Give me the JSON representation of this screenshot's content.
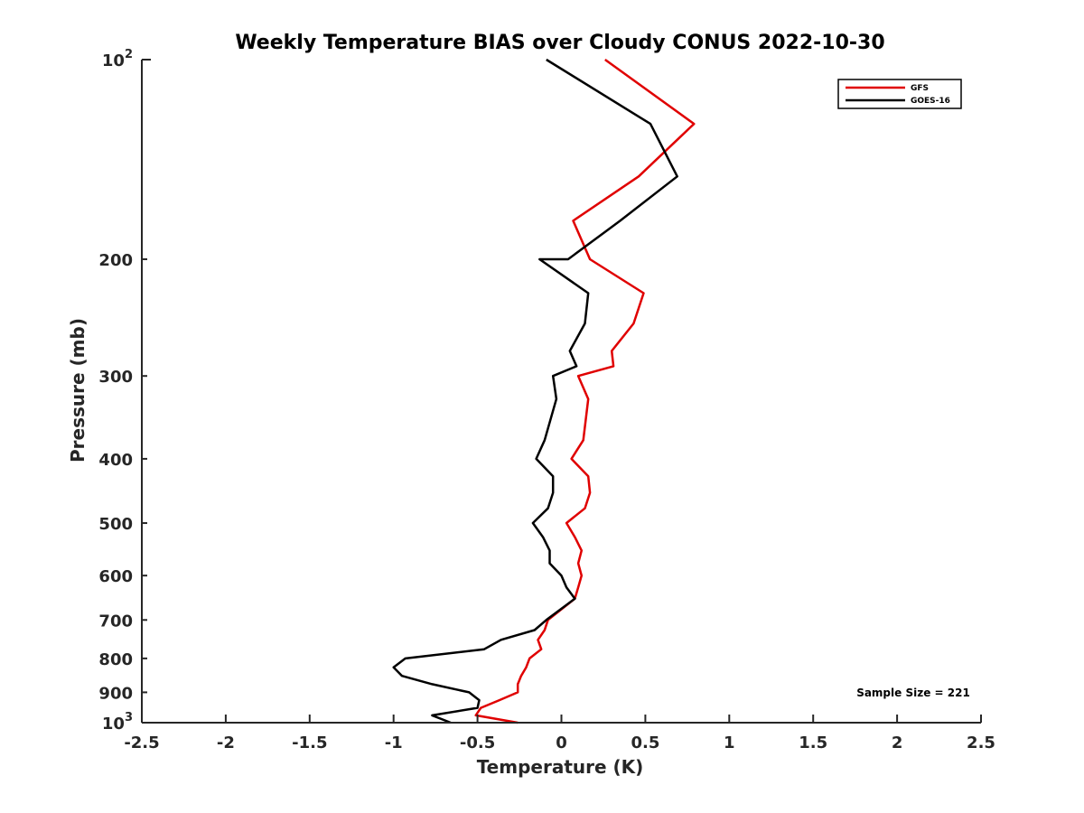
{
  "chart_data": {
    "type": "line",
    "title": "Weekly Temperature BIAS over Cloudy CONUS 2022-10-30",
    "xlabel": "Temperature (K)",
    "ylabel": "Pressure (mb)",
    "xlim": [
      -2.5,
      2.5
    ],
    "ylim": [
      100,
      1000
    ],
    "y_scale": "log",
    "y_direction": "reversed",
    "x_ticks": [
      "-2.5",
      "-2",
      "-1.5",
      "-1",
      "-0.5",
      "0",
      "0.5",
      "1",
      "1.5",
      "2",
      "2.5"
    ],
    "y_ticks": [
      {
        "value": 100,
        "base": "10",
        "exp": "2"
      },
      {
        "value": 200,
        "label": "200"
      },
      {
        "value": 300,
        "label": "300"
      },
      {
        "value": 400,
        "label": "400"
      },
      {
        "value": 500,
        "label": "500"
      },
      {
        "value": 600,
        "label": "600"
      },
      {
        "value": 700,
        "label": "700"
      },
      {
        "value": 800,
        "label": "800"
      },
      {
        "value": 900,
        "label": "900"
      },
      {
        "value": 1000,
        "base": "10",
        "exp": "3"
      }
    ],
    "grid": false,
    "legend_position": "top-right",
    "annotation": "Sample Size = 221",
    "series": [
      {
        "name": "GFS",
        "color": "#e00000",
        "points": [
          [
            0.26,
            100
          ],
          [
            0.79,
            125
          ],
          [
            0.46,
            150
          ],
          [
            0.07,
            175
          ],
          [
            0.17,
            200
          ],
          [
            0.49,
            225
          ],
          [
            0.43,
            250
          ],
          [
            0.3,
            275
          ],
          [
            0.31,
            290
          ],
          [
            0.1,
            300
          ],
          [
            0.16,
            325
          ],
          [
            0.13,
            375
          ],
          [
            0.06,
            400
          ],
          [
            0.16,
            425
          ],
          [
            0.17,
            450
          ],
          [
            0.14,
            475
          ],
          [
            0.03,
            500
          ],
          [
            0.08,
            525
          ],
          [
            0.12,
            550
          ],
          [
            0.1,
            575
          ],
          [
            0.12,
            600
          ],
          [
            0.1,
            625
          ],
          [
            0.08,
            650
          ],
          [
            -0.08,
            700
          ],
          [
            -0.1,
            725
          ],
          [
            -0.14,
            750
          ],
          [
            -0.12,
            775
          ],
          [
            -0.19,
            800
          ],
          [
            -0.21,
            825
          ],
          [
            -0.24,
            850
          ],
          [
            -0.26,
            875
          ],
          [
            -0.26,
            900
          ],
          [
            -0.37,
            925
          ],
          [
            -0.48,
            950
          ],
          [
            -0.51,
            975
          ],
          [
            -0.26,
            1000
          ]
        ]
      },
      {
        "name": "GOES-16",
        "color": "#000000",
        "points": [
          [
            -0.09,
            100
          ],
          [
            0.53,
            125
          ],
          [
            0.69,
            150
          ],
          [
            0.35,
            175
          ],
          [
            0.04,
            200
          ],
          [
            -0.13,
            200
          ],
          [
            0.16,
            225
          ],
          [
            0.14,
            250
          ],
          [
            0.05,
            275
          ],
          [
            0.09,
            290
          ],
          [
            -0.05,
            300
          ],
          [
            -0.03,
            325
          ],
          [
            -0.1,
            375
          ],
          [
            -0.15,
            400
          ],
          [
            -0.05,
            425
          ],
          [
            -0.05,
            450
          ],
          [
            -0.08,
            475
          ],
          [
            -0.17,
            500
          ],
          [
            -0.11,
            525
          ],
          [
            -0.07,
            550
          ],
          [
            -0.07,
            575
          ],
          [
            0,
            600
          ],
          [
            0.03,
            625
          ],
          [
            0.08,
            650
          ],
          [
            -0.09,
            700
          ],
          [
            -0.16,
            725
          ],
          [
            -0.36,
            750
          ],
          [
            -0.46,
            775
          ],
          [
            -0.93,
            800
          ],
          [
            -1.0,
            825
          ],
          [
            -0.95,
            850
          ],
          [
            -0.77,
            875
          ],
          [
            -0.55,
            900
          ],
          [
            -0.49,
            925
          ],
          [
            -0.5,
            950
          ],
          [
            -0.77,
            975
          ],
          [
            -0.66,
            1000
          ]
        ]
      }
    ]
  }
}
